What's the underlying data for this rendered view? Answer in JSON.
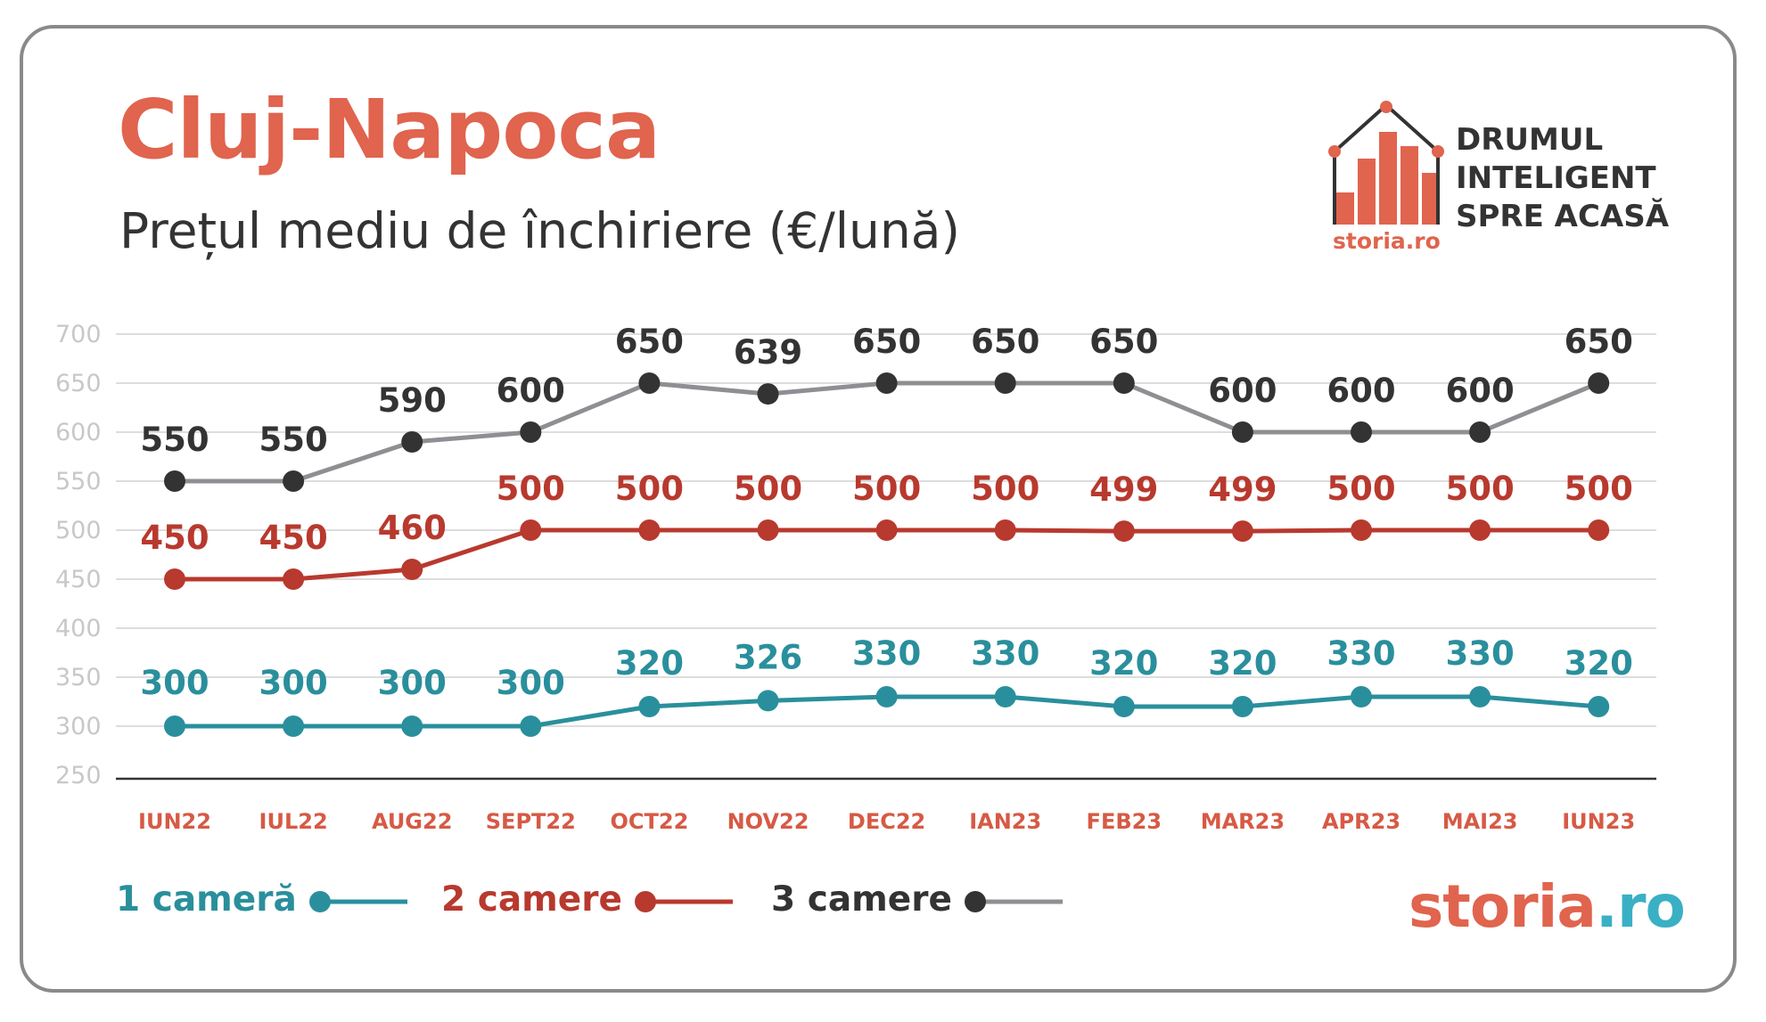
{
  "title": "Cluj-Napoca",
  "subtitle": "Prețul mediu de închiriere (€/lună)",
  "logo": {
    "tagline": [
      "DRUMUL",
      "INTELIGENT",
      "SPRE ACASĂ"
    ],
    "brand_small": "storia.ro"
  },
  "brand": {
    "part1": "storia",
    "part2": ".ro"
  },
  "colors": {
    "title": "#e0644e",
    "one_room": "#2a8f9c",
    "two_rooms": "#b8392e",
    "three_rooms_point": "#333333",
    "three_rooms_line": "#8f8f93",
    "category": "#d65a45",
    "tick": "#c8c8c8",
    "grid": "#dddddd"
  },
  "chart_data": {
    "type": "line",
    "categories": [
      "IUN22",
      "IUL22",
      "AUG22",
      "SEPT22",
      "OCT22",
      "NOV22",
      "DEC22",
      "IAN23",
      "FEB23",
      "MAR23",
      "APR23",
      "MAI23",
      "IUN23"
    ],
    "yticks": [
      250,
      300,
      350,
      400,
      450,
      500,
      550,
      600,
      650,
      700
    ],
    "ylim": [
      250,
      700
    ],
    "grid": true,
    "legend_position": "bottom-left",
    "series": [
      {
        "name": "1 cameră",
        "key": "one_room",
        "values": [
          300,
          300,
          300,
          300,
          320,
          326,
          330,
          330,
          320,
          320,
          330,
          330,
          320
        ]
      },
      {
        "name": "2 camere",
        "key": "two_rooms",
        "values": [
          450,
          450,
          460,
          500,
          500,
          500,
          500,
          500,
          499,
          499,
          500,
          500,
          500
        ]
      },
      {
        "name": "3 camere",
        "key": "three_rooms",
        "values": [
          550,
          550,
          590,
          600,
          650,
          639,
          650,
          650,
          650,
          600,
          600,
          600,
          650
        ]
      }
    ]
  }
}
